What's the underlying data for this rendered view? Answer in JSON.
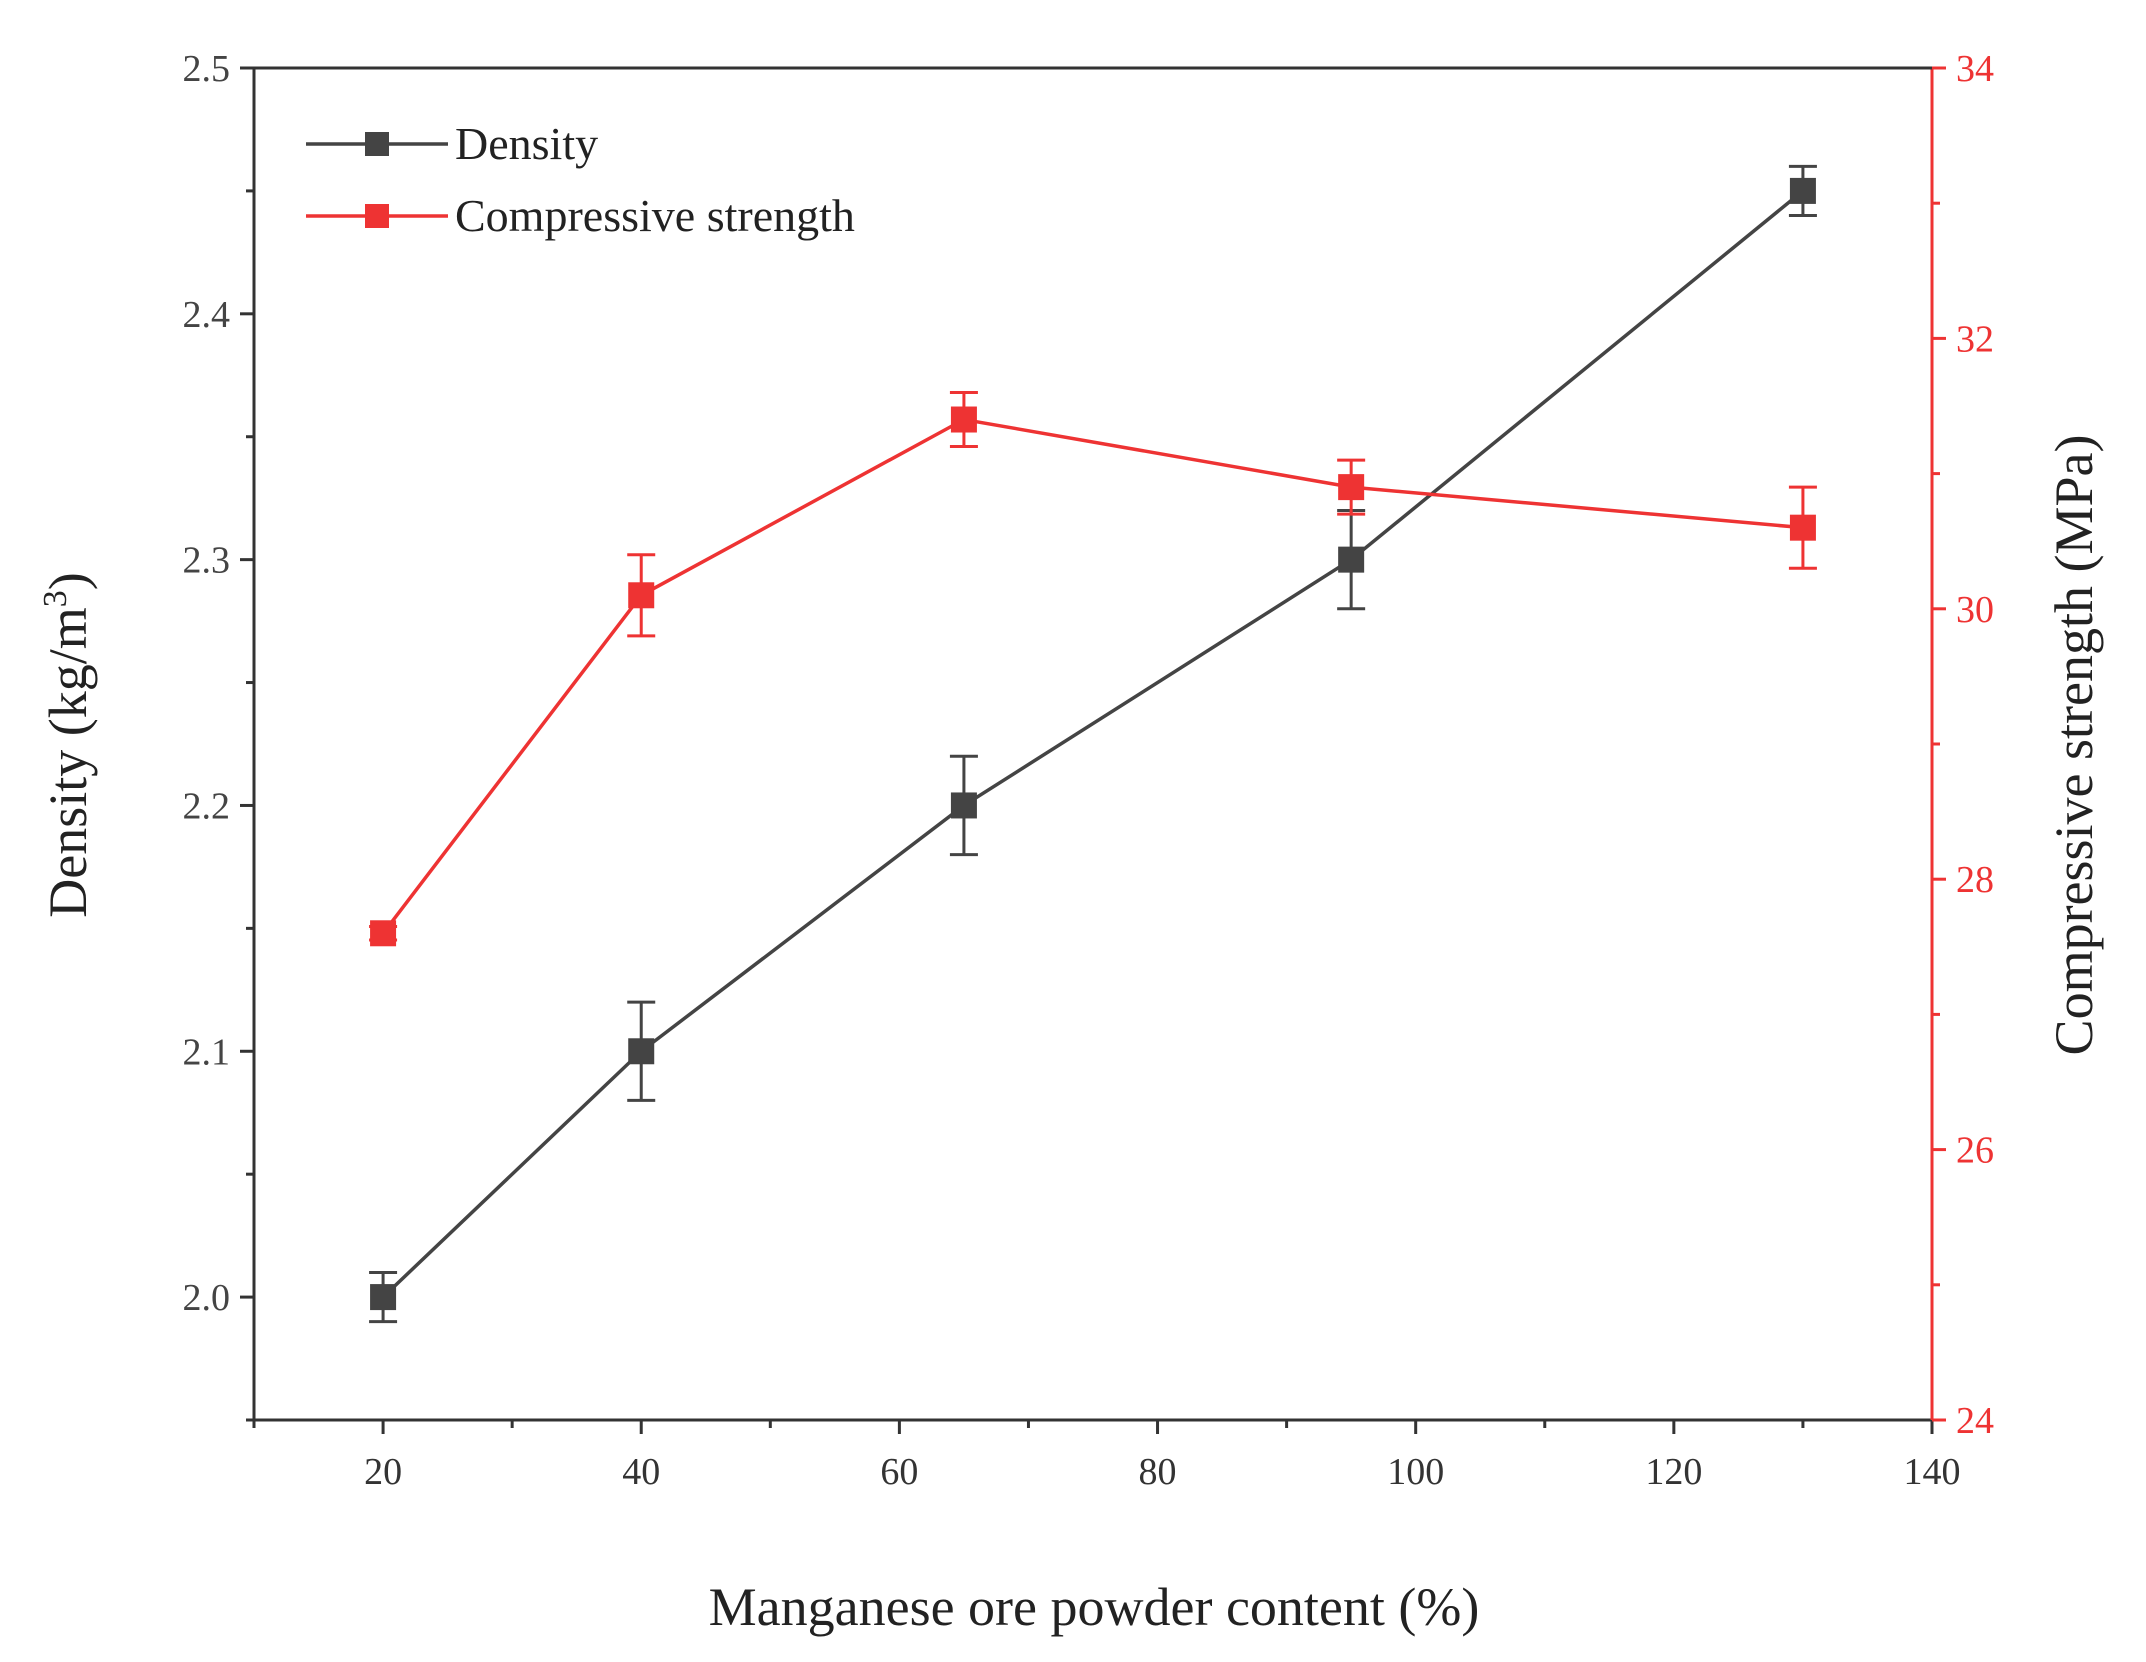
{
  "chart_data": {
    "type": "line",
    "x_label": "Manganese ore powder content (%)",
    "x_range": [
      10,
      140
    ],
    "x_ticks": [
      20,
      40,
      60,
      80,
      100,
      120,
      140
    ],
    "x_tick_labels": [
      "20",
      "40",
      "60",
      "80",
      "100",
      "120",
      "140"
    ],
    "y_left": {
      "label_main": "Density (kg/m",
      "label_sup": "3",
      "label_end": ")",
      "range": [
        1.95,
        2.5
      ],
      "ticks": [
        2.0,
        2.1,
        2.2,
        2.3,
        2.4,
        2.5
      ],
      "tick_labels": [
        "2.0",
        "2.1",
        "2.2",
        "2.3",
        "2.4",
        "2.5"
      ],
      "color": "#444444"
    },
    "y_right": {
      "label": "Compressive strength (MPa)",
      "range": [
        24,
        34
      ],
      "ticks": [
        24,
        26,
        28,
        30,
        32,
        34
      ],
      "tick_labels": [
        "24",
        "26",
        "28",
        "30",
        "32",
        "34"
      ],
      "color": "#ee3333"
    },
    "series": [
      {
        "name": "Density",
        "axis": "left",
        "color": "#444444",
        "x": [
          20,
          40,
          65,
          95,
          130
        ],
        "values": [
          2.0,
          2.1,
          2.2,
          2.3,
          2.45
        ],
        "errors": [
          0.01,
          0.02,
          0.02,
          0.02,
          0.01
        ]
      },
      {
        "name": "Compressive strength",
        "axis": "right",
        "color": "#ee3333",
        "x": [
          20,
          40,
          65,
          95,
          130
        ],
        "values": [
          27.6,
          30.1,
          31.4,
          30.9,
          30.6
        ],
        "errors": [
          0.05,
          0.3,
          0.2,
          0.2,
          0.3
        ]
      }
    ],
    "legend_position": "top-left"
  }
}
